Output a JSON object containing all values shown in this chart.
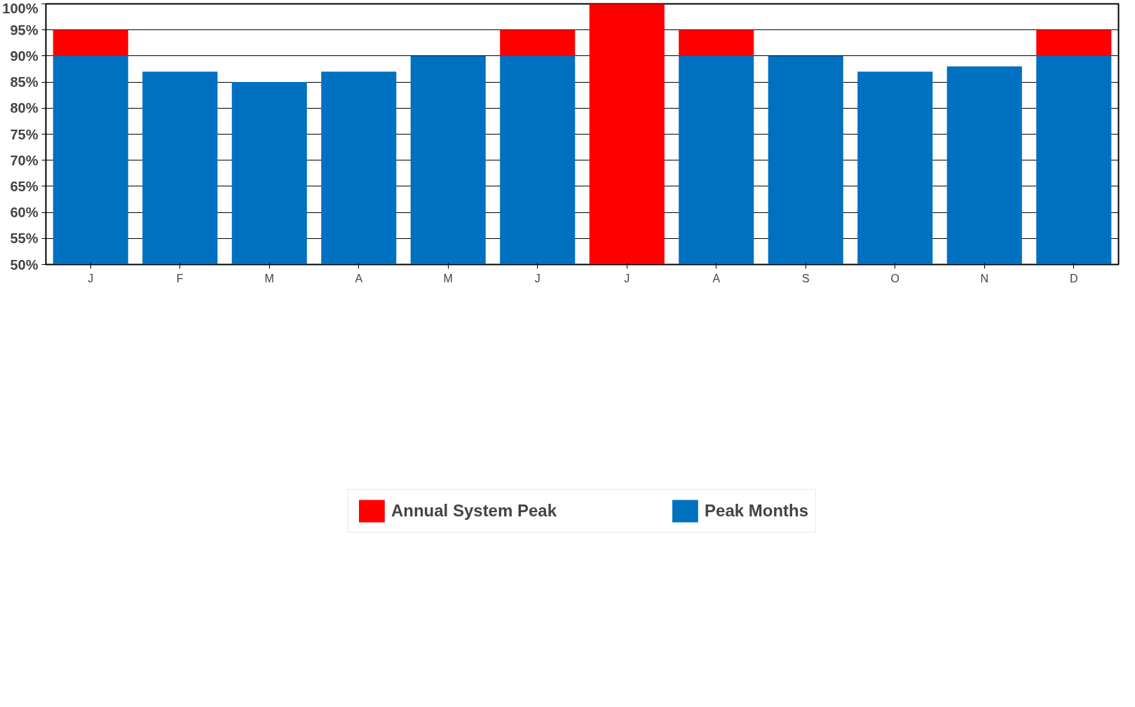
{
  "chart_data": {
    "type": "bar",
    "categories": [
      "J",
      "F",
      "M",
      "A",
      "M",
      "J",
      "J",
      "A",
      "S",
      "O",
      "N",
      "D"
    ],
    "series": [
      {
        "name": "Peak Months",
        "color": "#0070c0",
        "values": [
          90,
          87,
          85,
          87,
          90,
          90,
          null,
          90,
          90,
          87,
          88,
          90
        ]
      },
      {
        "name": "Annual System Peak",
        "color": "#ff0000",
        "values": [
          5,
          null,
          null,
          null,
          null,
          5,
          50,
          5,
          null,
          null,
          null,
          5
        ],
        "base": [
          90,
          null,
          null,
          null,
          null,
          90,
          50,
          90,
          null,
          null,
          null,
          90
        ]
      }
    ],
    "ylim": [
      50,
      100
    ],
    "yticks": [
      {
        "value": 50,
        "label": "50%"
      },
      {
        "value": 55,
        "label": "55%"
      },
      {
        "value": 60,
        "label": "60%"
      },
      {
        "value": 65,
        "label": "65%"
      },
      {
        "value": 70,
        "label": "70%"
      },
      {
        "value": 75,
        "label": "75%"
      },
      {
        "value": 80,
        "label": "80%"
      },
      {
        "value": 85,
        "label": "85%"
      },
      {
        "value": 90,
        "label": "90%"
      },
      {
        "value": 95,
        "label": "95%"
      },
      {
        "value": 100,
        "label": "100%"
      }
    ],
    "grid": "y",
    "legend": "bottom"
  }
}
